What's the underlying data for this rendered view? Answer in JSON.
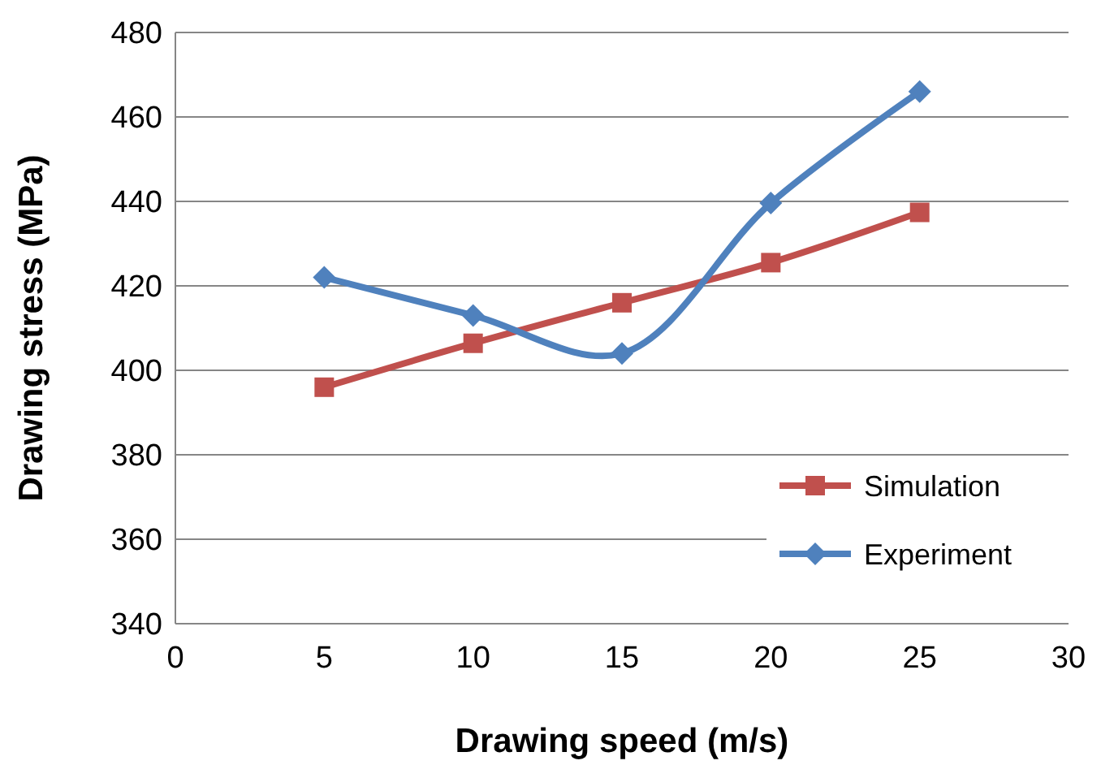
{
  "chart_data": {
    "type": "line",
    "xlabel": "Drawing speed (m/s)",
    "ylabel": "Drawing stress (MPa)",
    "x": [
      5,
      10,
      15,
      20,
      25
    ],
    "series": [
      {
        "name": "Simulation",
        "color": "#c0504d",
        "marker": "square",
        "values": [
          396,
          406.4,
          416,
          425.5,
          437.4
        ]
      },
      {
        "name": "Experiment",
        "color": "#4f81bd",
        "marker": "diamond",
        "values": [
          422,
          413,
          404,
          439.6,
          466
        ]
      }
    ],
    "xlim": [
      0,
      30
    ],
    "xticks": [
      0,
      5,
      10,
      15,
      20,
      25,
      30
    ],
    "ylim": [
      340,
      480
    ],
    "yticks": [
      340,
      360,
      380,
      400,
      420,
      440,
      460,
      480
    ],
    "grid": "y",
    "legend": "bottom right",
    "line_style": "solid"
  }
}
